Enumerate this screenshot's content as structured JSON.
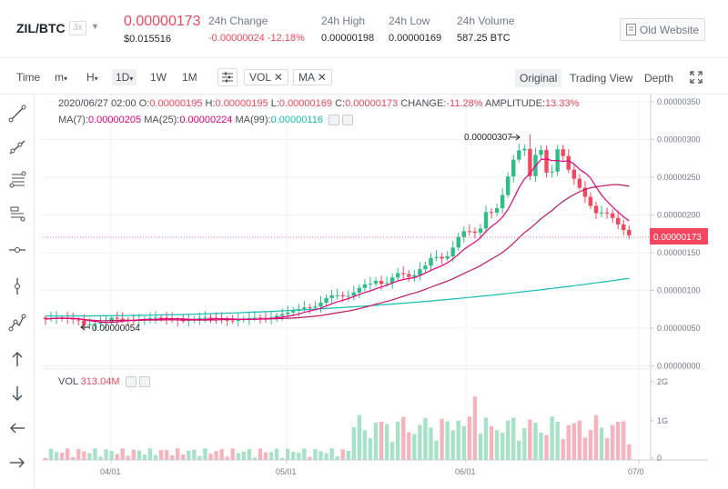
{
  "header": {
    "pair": "ZIL/BTC",
    "leverage": "3x",
    "price": "0.00000173",
    "price_usd": "$0.015516",
    "stats": [
      {
        "label": "24h Change",
        "value": "-0.00000024 -12.18%",
        "negative": true
      },
      {
        "label": "24h High",
        "value": "0.00000198",
        "negative": false
      },
      {
        "label": "24h Low",
        "value": "0.00000169",
        "negative": false
      },
      {
        "label": "24h Volume",
        "value": "587.25 BTC",
        "negative": false
      }
    ],
    "old_website": "Old Website"
  },
  "toolbar": {
    "time": "Time",
    "minute": "m",
    "hour": "H",
    "day": "1D",
    "week": "1W",
    "month": "1M",
    "vol_tag": "VOL",
    "ma_tag": "MA",
    "views": [
      "Original",
      "Trading View",
      "Depth"
    ]
  },
  "legend": {
    "date": "2020/06/27 02:00",
    "o_label": "O:",
    "o": "0.00000195",
    "h_label": "H:",
    "h": "0.00000195",
    "l_label": "L:",
    "l": "0.00000169",
    "c_label": "C:",
    "c": "0.00000173",
    "change_label": "CHANGE:",
    "change": "-11.28%",
    "amp_label": "AMPLITUDE:",
    "amp": "13.33%",
    "ma7_label": "MA(7):",
    "ma7": "0.00000205",
    "ma25_label": "MA(25):",
    "ma25": "0.00000224",
    "ma99_label": "MA(99):",
    "ma99": "0.00000116",
    "vol_label": "VOL",
    "vol": "313.04M"
  },
  "annotations": {
    "high_marker": "0.00000307",
    "low_marker": "0.00000054",
    "last_price": "0.00000173"
  },
  "axis": {
    "y_ticks": [
      "0.00000350",
      "0.00000300",
      "0.00000250",
      "0.00000200",
      "0.00000150",
      "0.00000100",
      "0.00000050",
      "0.00000000"
    ],
    "vol_ticks": [
      "2G",
      "1G",
      "0"
    ],
    "x_ticks": [
      "04/01",
      "05/01",
      "06/01",
      "07/0"
    ]
  },
  "colors": {
    "up": "#2ebd85",
    "down": "#f6465d",
    "ma7": "#e6007e",
    "ma25": "#c2185b",
    "ma99": "#12bdb5"
  },
  "icons": [
    "trend-line-icon",
    "ray-icon",
    "fib-icon",
    "channel-icon",
    "horizontal-line-icon",
    "vertical-line-icon",
    "path-icon",
    "up-arrow-icon",
    "down-arrow-icon",
    "left-arrow-icon",
    "right-arrow-icon",
    "fullscreen-icon",
    "settings-icon",
    "document-icon"
  ]
}
